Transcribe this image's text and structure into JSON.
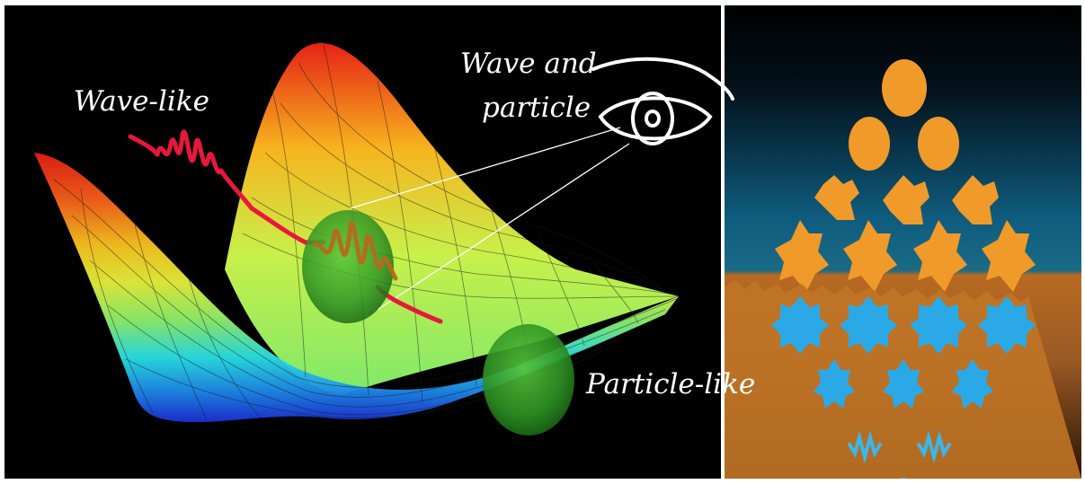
{
  "labels": {
    "wave_like": "Wave-like",
    "wave_and_particle_line1": "Wave and",
    "wave_and_particle_line2": "particle",
    "particle_like": "Particle-like"
  },
  "colors": {
    "background": "#000000",
    "wave_packet": "#e8173c",
    "sphere": "#3fa82a",
    "right_orange": "#f09a2a",
    "right_blue": "#2aa9e6",
    "eye_lines": "#ffffff"
  },
  "icons": [
    "eye-icon",
    "wave-packet",
    "particle-sphere",
    "fractal-particle-pattern"
  ]
}
